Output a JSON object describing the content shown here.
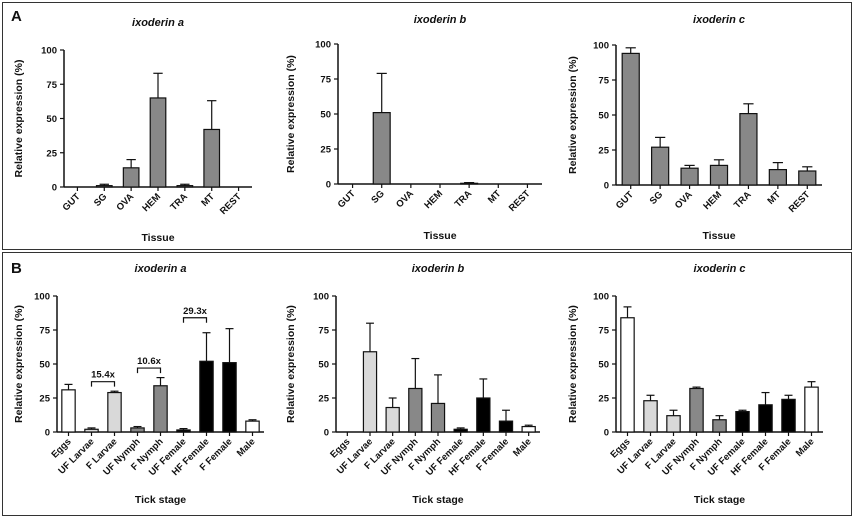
{
  "panels": [
    {
      "letter": "A",
      "xlabel": "Tissue"
    },
    {
      "letter": "B",
      "xlabel": "Tick stage"
    }
  ],
  "chart_data": [
    {
      "type": "bar",
      "panel": "A",
      "title": "ixoderin a",
      "xlabel": "Tissue",
      "ylabel": "Relative expression (%)",
      "categories": [
        "GUT",
        "SG",
        "OVA",
        "HEM",
        "TRA",
        "MT",
        "REST"
      ],
      "values": [
        0,
        1,
        14,
        65,
        1,
        42,
        0
      ],
      "errors": [
        0,
        1,
        6,
        18,
        1,
        21,
        0
      ],
      "colors": [
        "#888888",
        "#888888",
        "#888888",
        "#888888",
        "#888888",
        "#888888",
        "#888888"
      ],
      "ylim": [
        0,
        100
      ],
      "yticks": [
        0,
        25,
        50,
        75,
        100
      ],
      "annotations": []
    },
    {
      "type": "bar",
      "panel": "A",
      "title": "ixoderin b",
      "xlabel": "Tissue",
      "ylabel": "Relative expression (%)",
      "categories": [
        "GUT",
        "SG",
        "OVA",
        "HEM",
        "TRA",
        "MT",
        "REST"
      ],
      "values": [
        0,
        51,
        0,
        0,
        0.5,
        0,
        0
      ],
      "errors": [
        0,
        28,
        0,
        0,
        0.5,
        0,
        0
      ],
      "colors": [
        "#888888",
        "#888888",
        "#888888",
        "#888888",
        "#888888",
        "#888888",
        "#888888"
      ],
      "ylim": [
        0,
        100
      ],
      "yticks": [
        0,
        25,
        50,
        75,
        100
      ],
      "annotations": []
    },
    {
      "type": "bar",
      "panel": "A",
      "title": "ixoderin c",
      "xlabel": "Tissue",
      "ylabel": "Relative expression (%)",
      "categories": [
        "GUT",
        "SG",
        "OVA",
        "HEM",
        "TRA",
        "MT",
        "REST"
      ],
      "values": [
        94,
        27,
        12,
        14,
        51,
        11,
        10
      ],
      "errors": [
        4,
        7,
        2,
        4,
        7,
        5,
        3
      ],
      "colors": [
        "#888888",
        "#888888",
        "#888888",
        "#888888",
        "#888888",
        "#888888",
        "#888888"
      ],
      "ylim": [
        0,
        100
      ],
      "yticks": [
        0,
        25,
        50,
        75,
        100
      ],
      "annotations": []
    },
    {
      "type": "bar",
      "panel": "B",
      "title": "ixoderin a",
      "xlabel": "Tick stage",
      "ylabel": "Relative expression (%)",
      "categories": [
        "Eggs",
        "UF Larvae",
        "F Larvae",
        "UF Nymph",
        "F Nymph",
        "UF Female",
        "HF Female",
        "F Female",
        "Male"
      ],
      "values": [
        31,
        2,
        29,
        3,
        34,
        1.5,
        52,
        51,
        8
      ],
      "errors": [
        4,
        1,
        1,
        1,
        6,
        1,
        21,
        25,
        1
      ],
      "colors": [
        "#ffffff",
        "#d9d9d9",
        "#d9d9d9",
        "#888888",
        "#888888",
        "#000000",
        "#000000",
        "#000000",
        "#ffffff"
      ],
      "ylim": [
        0,
        100
      ],
      "yticks": [
        0,
        25,
        50,
        75,
        100
      ],
      "annotations": [
        {
          "text": "15.4x",
          "from": 1,
          "to": 2,
          "y": 37
        },
        {
          "text": "10.6x",
          "from": 3,
          "to": 4,
          "y": 47
        },
        {
          "text": "29.3x",
          "from": 5,
          "to": 6,
          "y": 84
        }
      ]
    },
    {
      "type": "bar",
      "panel": "B",
      "title": "ixoderin b",
      "xlabel": "Tick stage",
      "ylabel": "Relative expression (%)",
      "categories": [
        "Eggs",
        "UF Larvae",
        "F Larvae",
        "UF Nymph",
        "F Nymph",
        "UF Female",
        "HF Female",
        "F Female",
        "Male"
      ],
      "values": [
        0,
        59,
        18,
        32,
        21,
        2,
        25,
        8,
        4
      ],
      "errors": [
        0,
        21,
        7,
        22,
        21,
        1,
        14,
        8,
        1
      ],
      "colors": [
        "#ffffff",
        "#d9d9d9",
        "#d9d9d9",
        "#888888",
        "#888888",
        "#000000",
        "#000000",
        "#000000",
        "#ffffff"
      ],
      "ylim": [
        0,
        100
      ],
      "yticks": [
        0,
        25,
        50,
        75,
        100
      ],
      "annotations": []
    },
    {
      "type": "bar",
      "panel": "B",
      "title": "ixoderin c",
      "xlabel": "Tick stage",
      "ylabel": "Relative expression (%)",
      "categories": [
        "Eggs",
        "UF Larvae",
        "F Larvae",
        "UF Nymph",
        "F Nymph",
        "UF Female",
        "HF Female",
        "F Female",
        "Male"
      ],
      "values": [
        84,
        23,
        12,
        32,
        9,
        15,
        20,
        24,
        33
      ],
      "errors": [
        8,
        4,
        4,
        1,
        3,
        1,
        9,
        3,
        4
      ],
      "colors": [
        "#ffffff",
        "#d9d9d9",
        "#d9d9d9",
        "#888888",
        "#888888",
        "#000000",
        "#000000",
        "#000000",
        "#ffffff"
      ],
      "ylim": [
        0,
        100
      ],
      "yticks": [
        0,
        25,
        50,
        75,
        100
      ],
      "annotations": []
    }
  ]
}
